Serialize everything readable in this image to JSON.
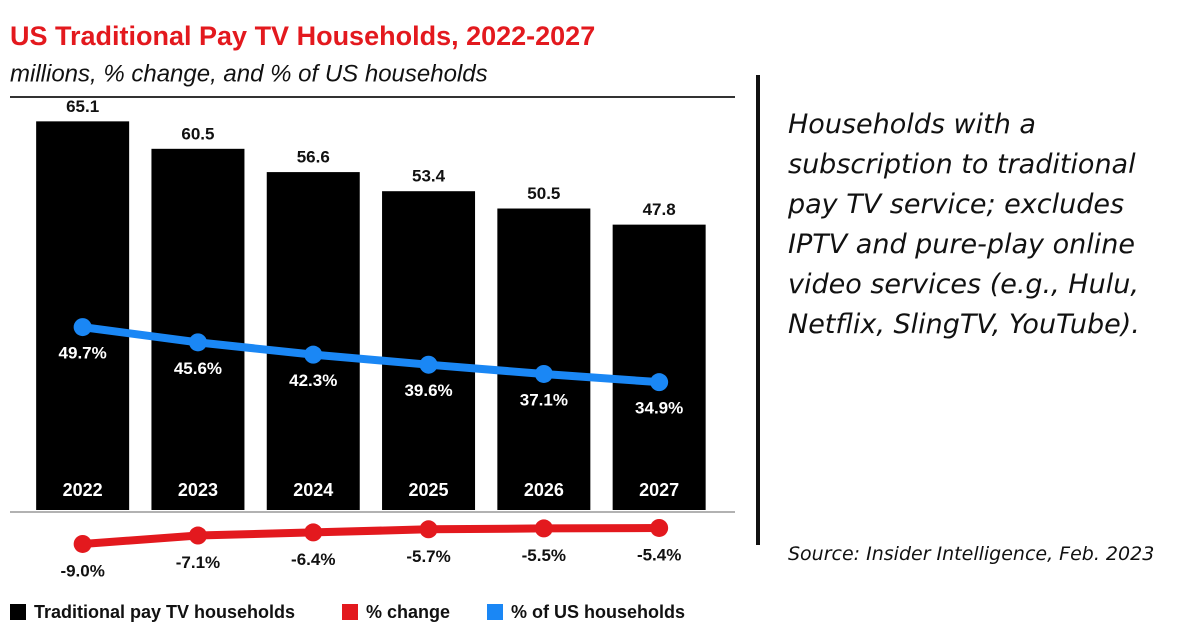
{
  "chart_data": {
    "type": "bar",
    "title": "US Traditional Pay TV Households, 2022-2027",
    "subtitle": "millions, % change, and % of US households",
    "categories": [
      "2022",
      "2023",
      "2024",
      "2025",
      "2026",
      "2027"
    ],
    "series": [
      {
        "name": "Traditional pay TV households",
        "type": "bar",
        "color": "#000000",
        "values": [
          65.1,
          60.5,
          56.6,
          53.4,
          50.5,
          47.8
        ]
      },
      {
        "name": "% change",
        "type": "line",
        "color": "#e3191e",
        "values": [
          -9.0,
          -7.1,
          -6.4,
          -5.7,
          -5.5,
          -5.4
        ],
        "value_labels": [
          "-9.0%",
          "-7.1%",
          "-6.4%",
          "-5.7%",
          "-5.5%",
          "-5.4%"
        ]
      },
      {
        "name": "% of US households",
        "type": "line",
        "color": "#1a87f5",
        "values": [
          49.7,
          45.6,
          42.3,
          39.6,
          37.1,
          34.9
        ],
        "value_labels": [
          "49.7%",
          "45.6%",
          "42.3%",
          "39.6%",
          "37.1%",
          "34.9%"
        ]
      }
    ]
  },
  "note": "Households with a subscription to traditional pay TV service; excludes IPTV and pure-play online video services (e.g., Hulu, Netflix, SlingTV, YouTube).",
  "source": "Source: Insider Intelligence, Feb. 2023"
}
